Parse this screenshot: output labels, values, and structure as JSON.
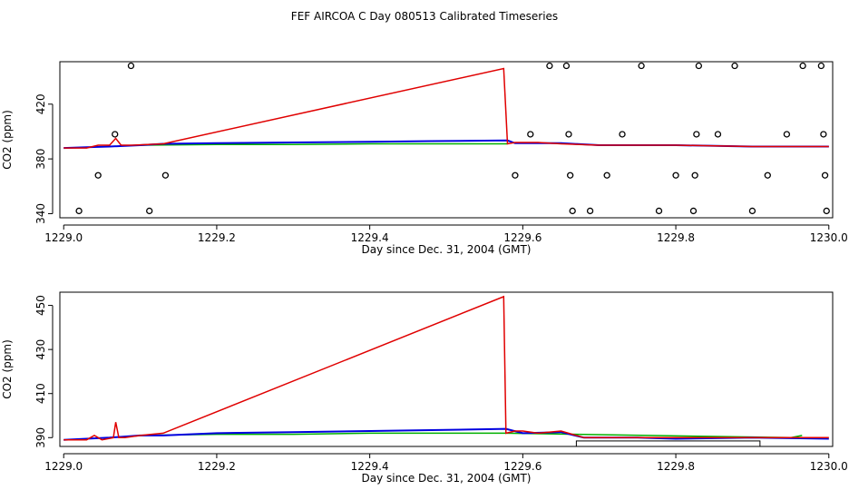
{
  "title": "FEF AIRCOA C  Day 080513  Calibrated Timeseries",
  "colors": {
    "red": "#e00000",
    "blue": "#0000e0",
    "green": "#00b000",
    "black": "#000000"
  },
  "chart_data": [
    {
      "type": "line",
      "xlabel": "Day since Dec. 31, 2004 (GMT)",
      "ylabel": "CO2 (ppm)",
      "xlim": [
        1228.995,
        1230.005
      ],
      "ylim": [
        337,
        451
      ],
      "x_ticks": [
        1229.0,
        1229.2,
        1229.4,
        1229.6,
        1229.8,
        1230.0
      ],
      "x_tick_labels": [
        "1229.0",
        "1229.2",
        "1229.4",
        "1229.6",
        "1229.8",
        "1230.0"
      ],
      "y_ticks": [
        340,
        380,
        420
      ],
      "y_tick_labels": [
        "340",
        "380",
        "420"
      ],
      "series": [
        {
          "color": "red",
          "x": [
            1229.0,
            1229.03,
            1229.045,
            1229.06,
            1229.068,
            1229.075,
            1229.09,
            1229.13,
            1229.575,
            1229.58,
            1229.59,
            1229.62,
            1229.65,
            1229.7,
            1229.8,
            1229.9,
            1230.0
          ],
          "y": [
            388,
            388,
            390,
            390,
            395,
            390,
            390,
            391,
            446,
            391,
            392,
            392,
            391,
            390,
            390,
            389,
            389
          ]
        },
        {
          "color": "blue",
          "x": [
            1229.0,
            1229.03,
            1229.06,
            1229.1,
            1229.13,
            1229.2,
            1229.3,
            1229.4,
            1229.48,
            1229.58,
            1229.59,
            1229.65,
            1229.7,
            1229.8,
            1229.9,
            1230.0
          ],
          "y": [
            388,
            388.5,
            389,
            390,
            391,
            391.5,
            392,
            392.5,
            393,
            393.5,
            391.5,
            391.5,
            390,
            390,
            389,
            389
          ]
        },
        {
          "color": "green",
          "x": [
            1229.1,
            1229.2,
            1229.3,
            1229.4,
            1229.5,
            1229.58
          ],
          "y": [
            390,
            390.5,
            390.5,
            391,
            391,
            391
          ]
        }
      ],
      "points": {
        "x": [
          1229.02,
          1229.045,
          1229.067,
          1229.088,
          1229.112,
          1229.133,
          1229.59,
          1229.61,
          1229.635,
          1229.657,
          1229.66,
          1229.662,
          1229.665,
          1229.688,
          1229.71,
          1229.73,
          1229.755,
          1229.778,
          1229.8,
          1229.823,
          1229.825,
          1229.827,
          1229.83,
          1229.855,
          1229.877,
          1229.9,
          1229.92,
          1229.945,
          1229.966,
          1229.99,
          1229.993,
          1229.995,
          1229.997
        ],
        "y": [
          342,
          368,
          398,
          448,
          342,
          368,
          368,
          398,
          448,
          448,
          398,
          368,
          342,
          342,
          368,
          398,
          448,
          342,
          368,
          342,
          368,
          398,
          448,
          398,
          448,
          342,
          368,
          398,
          448,
          448,
          398,
          368,
          342
        ]
      }
    },
    {
      "type": "line",
      "xlabel": "Day since Dec. 31, 2004 (GMT)",
      "ylabel": "CO2 (ppm)",
      "xlim": [
        1228.995,
        1230.005
      ],
      "ylim": [
        386,
        456
      ],
      "x_ticks": [
        1229.0,
        1229.2,
        1229.4,
        1229.6,
        1229.8,
        1230.0
      ],
      "x_tick_labels": [
        "1229.0",
        "1229.2",
        "1229.4",
        "1229.6",
        "1229.8",
        "1230.0"
      ],
      "y_ticks": [
        390,
        410,
        430,
        450
      ],
      "y_tick_labels": [
        "390",
        "410",
        "430",
        "450"
      ],
      "series": [
        {
          "color": "red",
          "x": [
            1229.0,
            1229.03,
            1229.04,
            1229.05,
            1229.065,
            1229.068,
            1229.072,
            1229.08,
            1229.1,
            1229.13,
            1229.575,
            1229.578,
            1229.59,
            1229.6,
            1229.62,
            1229.65,
            1229.68,
            1229.75,
            1229.8,
            1229.9,
            1229.95,
            1230.0
          ],
          "y": [
            389,
            389,
            391,
            389,
            390,
            397,
            390,
            390,
            391,
            392,
            454,
            392,
            393,
            393,
            392,
            393,
            390,
            390,
            390,
            390,
            390,
            390
          ]
        },
        {
          "color": "blue",
          "x": [
            1229.0,
            1229.03,
            1229.06,
            1229.1,
            1229.13,
            1229.2,
            1229.3,
            1229.4,
            1229.5,
            1229.578,
            1229.6,
            1229.65,
            1229.68,
            1229.75,
            1229.8,
            1229.9,
            1230.0
          ],
          "y": [
            389,
            389.5,
            390,
            391,
            391,
            392,
            392.5,
            393,
            393.5,
            394,
            392,
            392.5,
            390,
            390,
            389.5,
            390,
            389.5
          ]
        },
        {
          "color": "green",
          "x": [
            1229.1,
            1229.2,
            1229.3,
            1229.4,
            1229.5,
            1229.578,
            1229.95,
            1229.965
          ],
          "y": [
            391,
            391.5,
            391.5,
            392,
            392,
            392,
            390,
            391
          ]
        }
      ],
      "boxes": [
        {
          "x0": 1229.67,
          "x1": 1229.91,
          "y0": 386,
          "y1": 388.5
        }
      ]
    }
  ]
}
